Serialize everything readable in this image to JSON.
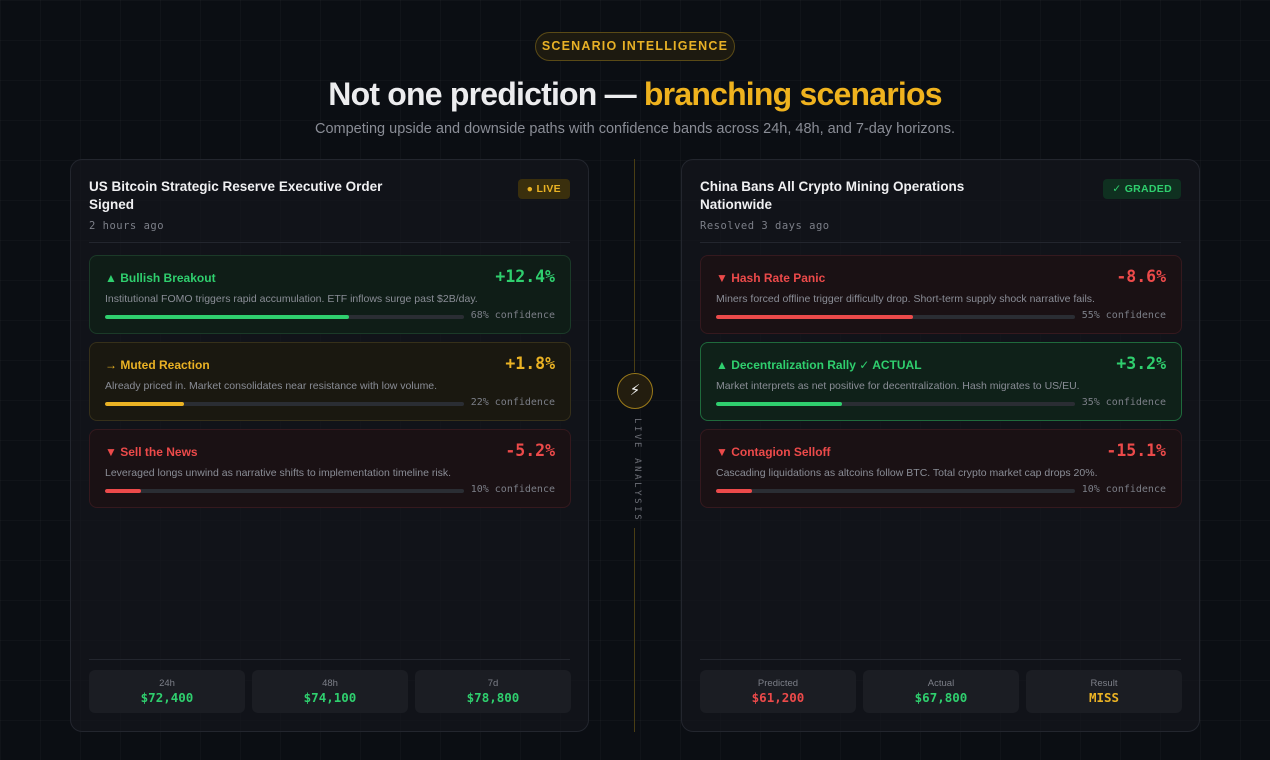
{
  "header": {
    "eyebrow": "SCENARIO INTELLIGENCE",
    "title_main": "Not one prediction — ",
    "title_accent": "branching scenarios",
    "subtitle": "Competing upside and downside paths with confidence bands across 24h, 48h, and 7-day horizons."
  },
  "divider": {
    "icon": "lightning-icon",
    "glyph": "⚡",
    "label": "LIVE ANALYSIS"
  },
  "left_panel": {
    "title": "US Bitcoin Strategic Reserve Executive Order Signed",
    "time": "2 hours ago",
    "badge": "● LIVE",
    "scenarios": [
      {
        "label": "▲ Bullish Breakout",
        "value": "+12.4%",
        "desc": "Institutional FOMO triggers rapid accumulation. ETF inflows surge past $2B/day.",
        "confidence": 0.68,
        "confidence_text": "68% confidence",
        "tone": "green"
      },
      {
        "label": "→ Muted Reaction",
        "value": "+1.8%",
        "desc": "Already priced in. Market consolidates near resistance with low volume.",
        "confidence": 0.22,
        "confidence_text": "22% confidence",
        "tone": "yellow"
      },
      {
        "label": "▼ Sell the News",
        "value": "-5.2%",
        "desc": "Leveraged longs unwind as narrative shifts to implementation timeline risk.",
        "confidence": 0.1,
        "confidence_text": "10% confidence",
        "tone": "red"
      }
    ],
    "stats": [
      {
        "label": "24h",
        "value": "$72,400",
        "tone": "green"
      },
      {
        "label": "48h",
        "value": "$74,100",
        "tone": "green"
      },
      {
        "label": "7d",
        "value": "$78,800",
        "tone": "green"
      }
    ]
  },
  "right_panel": {
    "title": "China Bans All Crypto Mining Operations Nationwide",
    "time": "Resolved 3 days ago",
    "badge": "✓ GRADED",
    "scenarios": [
      {
        "label": "▼ Hash Rate Panic",
        "value": "-8.6%",
        "desc": "Miners forced offline trigger difficulty drop. Short-term supply shock narrative fails.",
        "confidence": 0.55,
        "confidence_text": "55% confidence",
        "tone": "red"
      },
      {
        "label": "▲ Decentralization Rally ✓ ACTUAL",
        "value": "+3.2%",
        "desc": "Market interprets as net positive for decentralization. Hash migrates to US/EU.",
        "confidence": 0.35,
        "confidence_text": "35% confidence",
        "tone": "actual"
      },
      {
        "label": "▼ Contagion Selloff",
        "value": "-15.1%",
        "desc": "Cascading liquidations as altcoins follow BTC. Total crypto market cap drops 20%.",
        "confidence": 0.1,
        "confidence_text": "10% confidence",
        "tone": "red"
      }
    ],
    "stats": [
      {
        "label": "Predicted",
        "value": "$61,200",
        "tone": "red"
      },
      {
        "label": "Actual",
        "value": "$67,800",
        "tone": "green"
      },
      {
        "label": "Result",
        "value": "MISS",
        "tone": "yellow"
      }
    ]
  },
  "colors": {
    "green": "#2fcf6e",
    "yellow": "#eab224",
    "red": "#ec4a4a",
    "background": "#0b0e13"
  }
}
